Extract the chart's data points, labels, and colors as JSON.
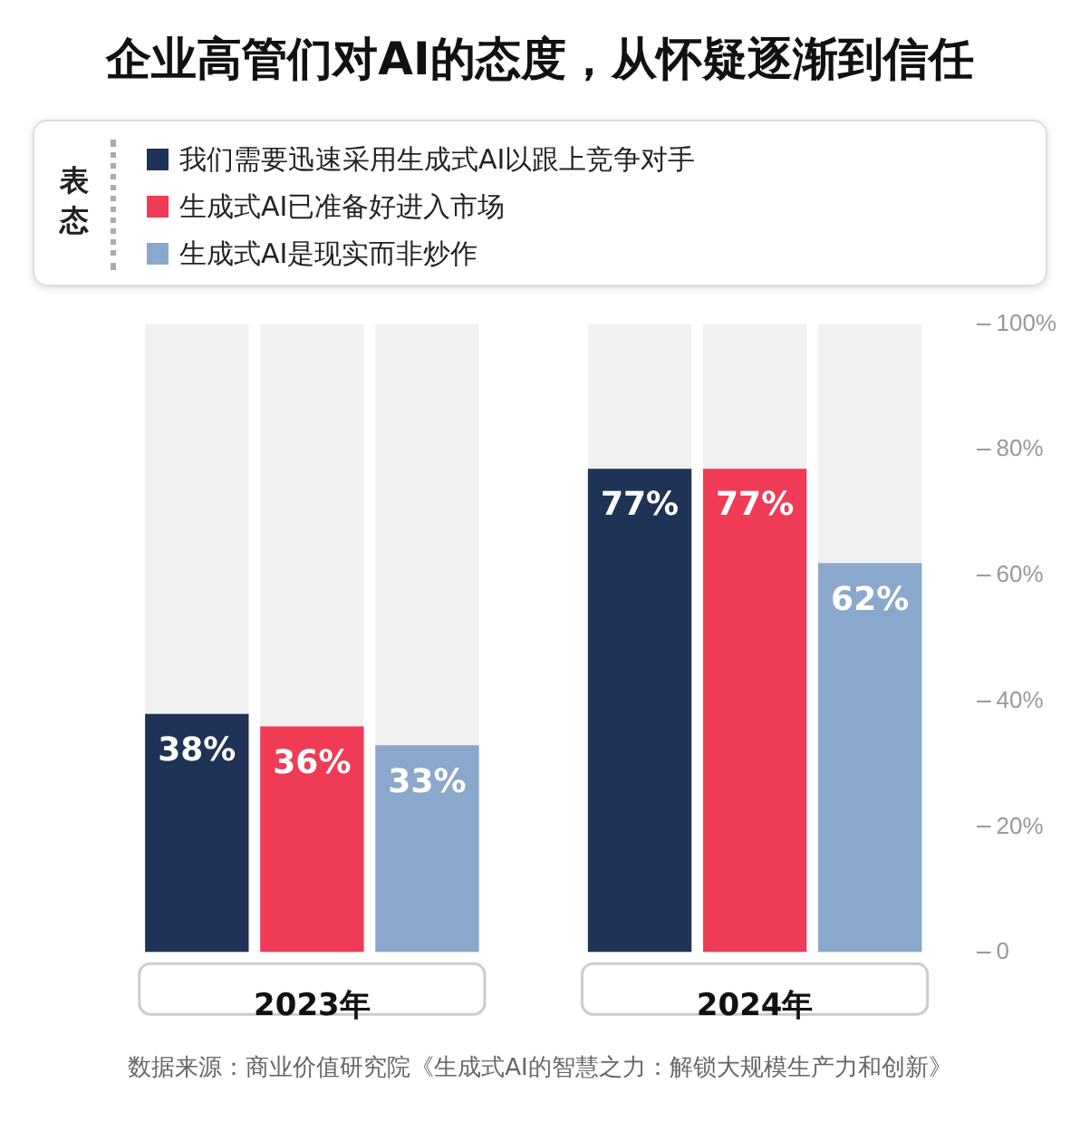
{
  "chart_data": {
    "type": "bar",
    "title": "企业高管们对AI的态度，从怀疑逐渐到信任",
    "legend_title": "表态",
    "categories": [
      "2023年",
      "2024年"
    ],
    "series": [
      {
        "name": "我们需要迅速采用生成式AI以跟上竞争对手",
        "color": "#1f3356",
        "values": [
          38,
          77
        ],
        "value_labels": [
          "38%",
          "77%"
        ]
      },
      {
        "name": "生成式AI已准备好进入市场",
        "color": "#ef3b56",
        "values": [
          36,
          77
        ],
        "value_labels": [
          "36%",
          "77%"
        ]
      },
      {
        "name": "生成式AI是现实而非炒作",
        "color": "#8aa8cc",
        "values": [
          33,
          62
        ],
        "value_labels": [
          "33%",
          "62%"
        ]
      }
    ],
    "ylim": [
      0,
      100
    ],
    "yticks": [
      {
        "value": 0,
        "label": "0"
      },
      {
        "value": 20,
        "label": "20%"
      },
      {
        "value": 40,
        "label": "40%"
      },
      {
        "value": 60,
        "label": "60%"
      },
      {
        "value": 80,
        "label": "80%"
      },
      {
        "value": 100,
        "label": "100%"
      }
    ],
    "grid": false,
    "legend": "top",
    "annotations": [
      "数据来源：商业价值研究院《生成式AI的智慧之力：解锁大规模生产力和创新》"
    ]
  }
}
